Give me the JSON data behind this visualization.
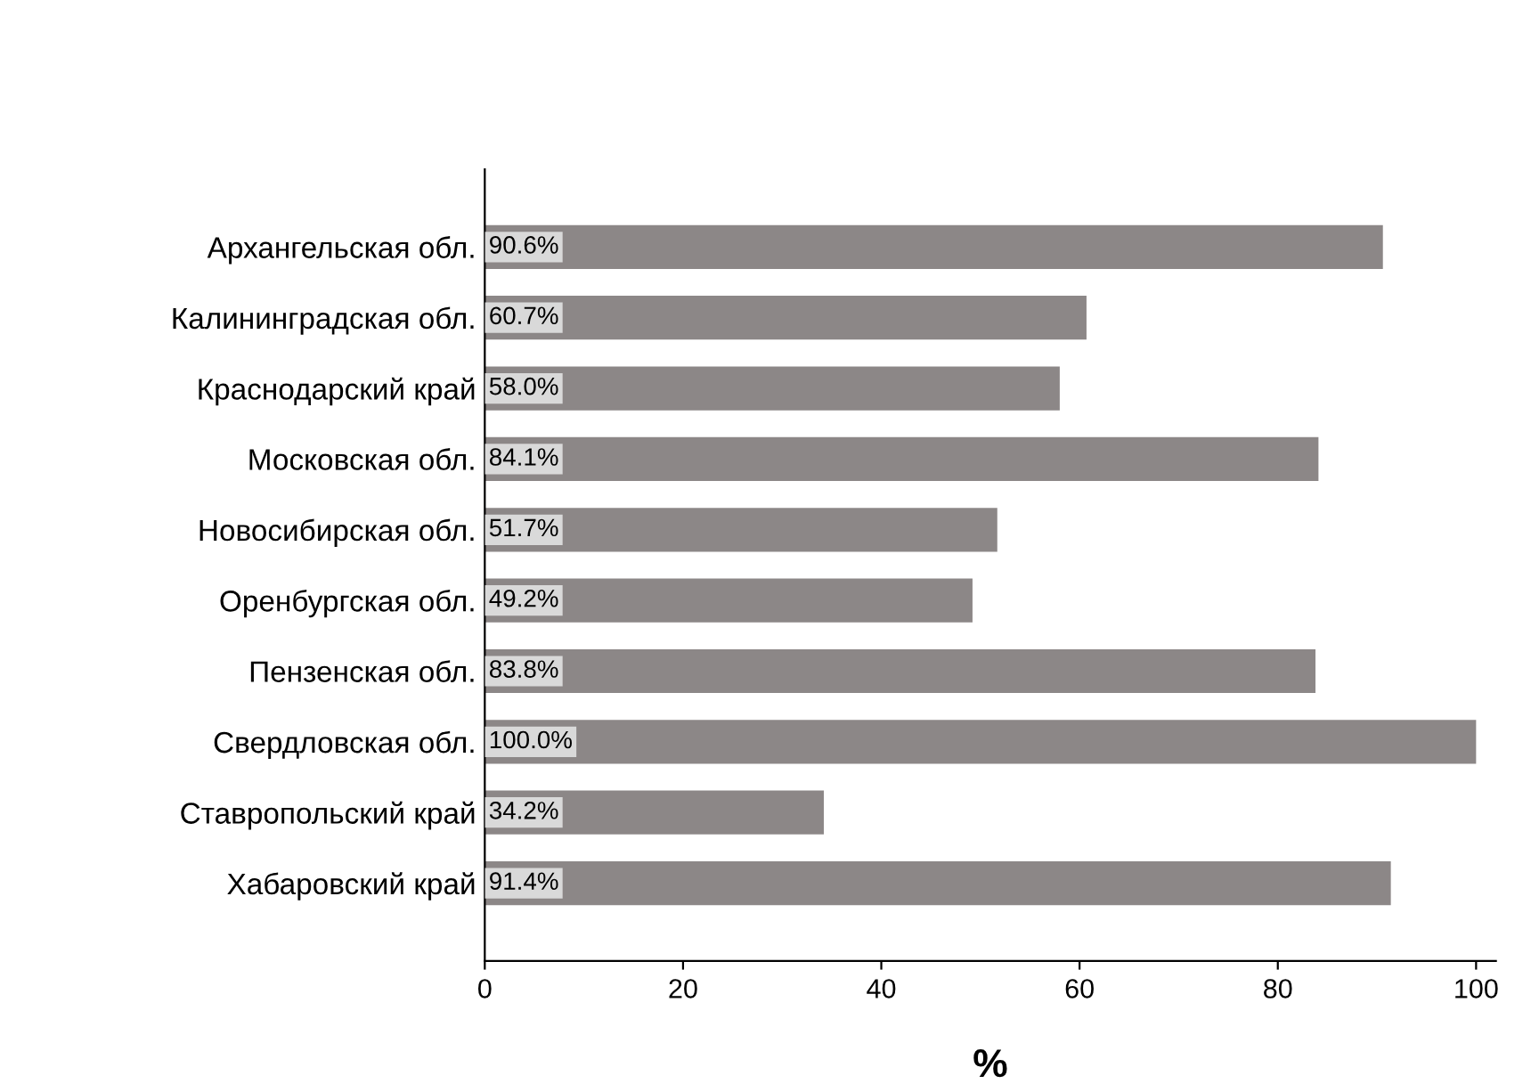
{
  "chart_data": {
    "type": "bar",
    "orientation": "horizontal",
    "xlabel": "%",
    "categories": [
      "Архангельская обл.",
      "Калининградская обл.",
      "Краснодарский край",
      "Московская обл.",
      "Новосибирская обл.",
      "Оренбургская обл.",
      "Пензенская обл.",
      "Свердловская обл.",
      "Ставропольский край",
      "Хабаровский край"
    ],
    "values": [
      90.6,
      60.7,
      58.0,
      84.1,
      51.7,
      49.2,
      83.8,
      100.0,
      34.2,
      91.4
    ],
    "value_labels": [
      "90.6%",
      "60.7%",
      "58.0%",
      "84.1%",
      "51.7%",
      "49.2%",
      "83.8%",
      "100.0%",
      "34.2%",
      "91.4%"
    ],
    "color": "#8c8787",
    "xlim": [
      0,
      102
    ],
    "xticks": [
      0,
      20,
      40,
      60,
      80,
      100
    ],
    "grid": false
  }
}
